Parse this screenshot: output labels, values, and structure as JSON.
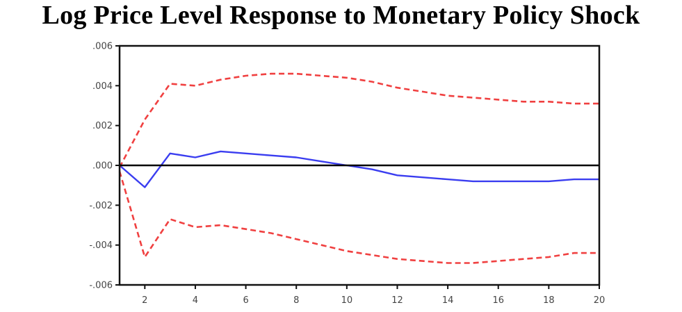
{
  "chart_data": {
    "type": "line",
    "title": "Log Price Level Response to Monetary Policy Shock",
    "xlabel": "",
    "ylabel": "",
    "xlim": [
      1,
      20
    ],
    "ylim": [
      -0.006,
      0.006
    ],
    "x_ticks": [
      2,
      4,
      6,
      8,
      10,
      12,
      14,
      16,
      18,
      20
    ],
    "x_tick_labels": [
      "2",
      "4",
      "6",
      "8",
      "10",
      "12",
      "14",
      "16",
      "18",
      "20"
    ],
    "y_ticks": [
      0.006,
      0.004,
      0.002,
      0.0,
      -0.002,
      -0.004,
      -0.006
    ],
    "y_tick_labels": [
      ".006",
      ".004",
      ".002",
      ".000",
      "-.002",
      "-.004",
      "-.006"
    ],
    "grid": false,
    "zero_line": true,
    "x": [
      1,
      2,
      3,
      4,
      5,
      6,
      7,
      8,
      9,
      10,
      11,
      12,
      13,
      14,
      15,
      16,
      17,
      18,
      19,
      20
    ],
    "series": [
      {
        "role": "response",
        "color": "#3a3df0",
        "style": "solid",
        "values": [
          0.0,
          -0.0011,
          0.0006,
          0.0004,
          0.0007,
          0.0006,
          0.0005,
          0.0004,
          0.0002,
          0.0,
          -0.0002,
          -0.0005,
          -0.0006,
          -0.0007,
          -0.0008,
          -0.0008,
          -0.0008,
          -0.0008,
          -0.0007,
          -0.0007
        ]
      },
      {
        "role": "upper-band",
        "color": "#f04040",
        "style": "dashed",
        "values": [
          -0.0001,
          0.0023,
          0.0041,
          0.004,
          0.0043,
          0.0045,
          0.0046,
          0.0046,
          0.0045,
          0.0044,
          0.0042,
          0.0039,
          0.0037,
          0.0035,
          0.0034,
          0.0033,
          0.0032,
          0.0032,
          0.0031,
          0.0031
        ]
      },
      {
        "role": "lower-band",
        "color": "#f04040",
        "style": "dashed",
        "values": [
          -0.0003,
          -0.0046,
          -0.0027,
          -0.0031,
          -0.003,
          -0.0032,
          -0.0034,
          -0.0037,
          -0.004,
          -0.0043,
          -0.0045,
          -0.0047,
          -0.0048,
          -0.0049,
          -0.0049,
          -0.0048,
          -0.0047,
          -0.0046,
          -0.0044,
          -0.0044
        ]
      }
    ]
  }
}
